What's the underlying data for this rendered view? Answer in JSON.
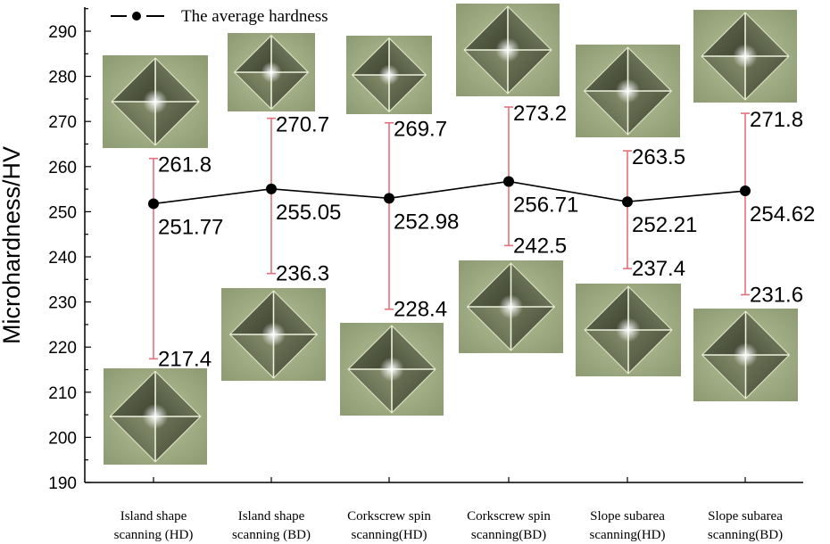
{
  "chart_data": {
    "type": "line",
    "categories": [
      [
        "Island shape",
        "scanning (HD)"
      ],
      [
        "Island shape",
        "scanning (BD)"
      ],
      [
        "Corkscrew spin",
        "scanning(HD)"
      ],
      [
        "Corkscrew spin",
        "scanning(BD)"
      ],
      [
        "Slope subarea",
        "scanning(HD)"
      ],
      [
        "Slope subarea",
        "scanning(BD)"
      ]
    ],
    "series": [
      {
        "name": "The average hardness",
        "values": [
          251.77,
          255.05,
          252.98,
          256.71,
          252.21,
          254.62
        ],
        "max": [
          261.8,
          270.7,
          269.7,
          273.2,
          263.5,
          271.8
        ],
        "min": [
          217.4,
          236.3,
          228.4,
          242.5,
          237.4,
          231.6
        ],
        "value_labels": [
          "251.77",
          "255.05",
          "252.98",
          "256.71",
          "252.21",
          "254.62"
        ],
        "max_labels": [
          "261.8",
          "270.7",
          "269.7",
          "273.2",
          "263.5",
          "271.8"
        ],
        "min_labels": [
          "217.4",
          "236.3",
          "228.4",
          "242.5",
          "237.4",
          "231.6"
        ]
      }
    ],
    "ylabel": "Microhardness/HV",
    "xlabel": "",
    "ylim": [
      190,
      295
    ],
    "yticks": [
      190,
      200,
      210,
      220,
      230,
      240,
      250,
      260,
      270,
      280,
      290
    ],
    "legend_position": "top-left",
    "colors": {
      "line": "#000000",
      "error_bar": "#e8707a",
      "photo_bg": "#9aa77f"
    },
    "inset_images": "Vickers indentation micrographs, one above and one below each category"
  }
}
